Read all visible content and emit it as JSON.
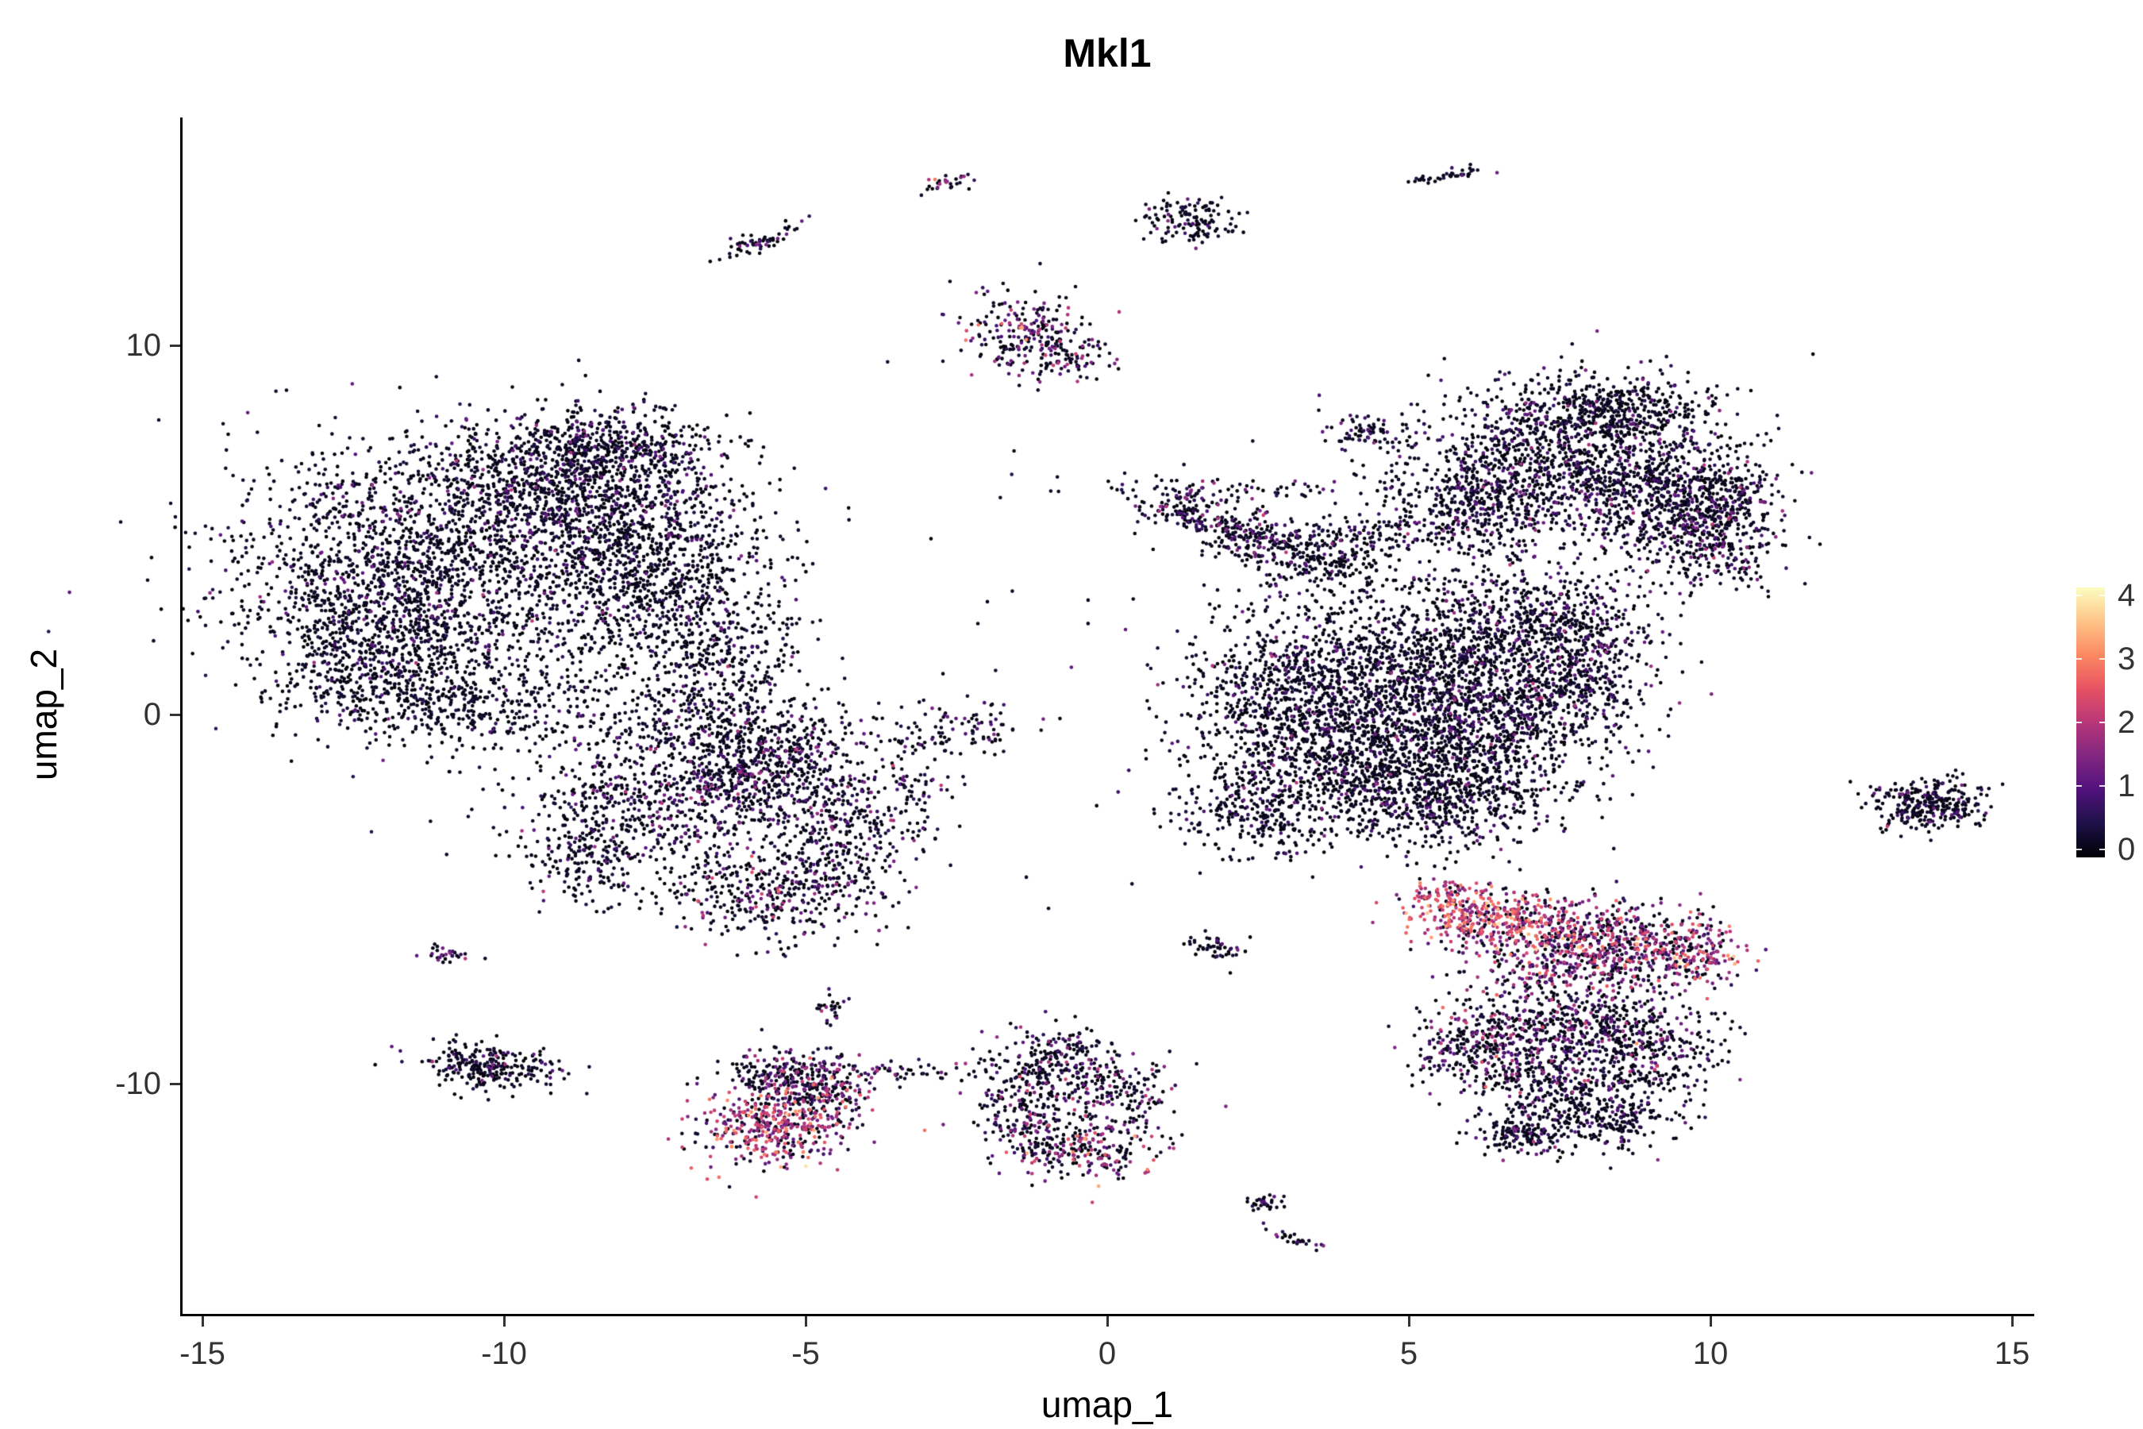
{
  "chart_data": {
    "type": "scatter",
    "title": "Mkl1",
    "xlabel": "umap_1",
    "ylabel": "umap_2",
    "x_ticks": [
      -15,
      -10,
      -5,
      0,
      5,
      10,
      15
    ],
    "y_ticks": [
      -10,
      0,
      10
    ],
    "xlim": [
      -15.4,
      15.4
    ],
    "ylim": [
      -16.2,
      16.2
    ],
    "grid": false,
    "background": "#ffffff",
    "axis_color": "#000000",
    "tick_label_color": "#333333",
    "point_radius_px": 2.3,
    "legend": {
      "type": "colorbar",
      "position": "right",
      "ticks": [
        0,
        1,
        2,
        3,
        4
      ],
      "vmin": 0,
      "vmax": 4.3,
      "colormap": "magma"
    },
    "colormap_stops": [
      [
        0.0,
        "#000004"
      ],
      [
        0.125,
        "#1d1147"
      ],
      [
        0.25,
        "#51127c"
      ],
      [
        0.375,
        "#822681"
      ],
      [
        0.5,
        "#b73779"
      ],
      [
        0.625,
        "#e75263"
      ],
      [
        0.75,
        "#fc8961"
      ],
      [
        0.875,
        "#fec488"
      ],
      [
        1.0,
        "#fcfdbf"
      ]
    ],
    "cluster_fields": [
      "center_x",
      "center_y",
      "sd_x",
      "sd_y",
      "n_points",
      "p_zero",
      "expr_mean",
      "expr_sd",
      "rot_deg"
    ],
    "clusters": [
      [
        -11.8,
        4.2,
        1.5,
        1.6,
        1100,
        0.8,
        0.7,
        0.5,
        0
      ],
      [
        -9.2,
        6.3,
        1.4,
        0.9,
        900,
        0.78,
        0.8,
        0.5,
        0
      ],
      [
        -8.2,
        4.8,
        1.1,
        1.1,
        700,
        0.8,
        0.7,
        0.5,
        0
      ],
      [
        -12.4,
        2.0,
        0.8,
        1.2,
        500,
        0.8,
        0.7,
        0.5,
        0
      ],
      [
        -10.0,
        2.5,
        1.9,
        1.8,
        800,
        0.85,
        0.6,
        0.45,
        0
      ],
      [
        -7.2,
        3.2,
        0.9,
        1.3,
        450,
        0.8,
        0.7,
        0.5,
        0
      ],
      [
        -8.3,
        7.3,
        0.8,
        0.5,
        350,
        0.75,
        0.8,
        0.5,
        0
      ],
      [
        -6.3,
        1.2,
        0.6,
        1.0,
        250,
        0.8,
        0.7,
        0.5,
        0
      ],
      [
        -11.0,
        0.3,
        1.2,
        0.6,
        300,
        0.82,
        0.6,
        0.5,
        0
      ],
      [
        -7.0,
        -2.2,
        1.2,
        1.0,
        700,
        0.72,
        0.9,
        0.6,
        0
      ],
      [
        -5.6,
        -1.4,
        0.8,
        0.7,
        400,
        0.72,
        0.9,
        0.6,
        0
      ],
      [
        -8.6,
        -3.6,
        0.5,
        0.8,
        220,
        0.75,
        0.8,
        0.5,
        0
      ],
      [
        -5.6,
        -4.8,
        0.9,
        0.6,
        380,
        0.7,
        1.0,
        0.7,
        0
      ],
      [
        -4.4,
        -3.2,
        0.6,
        0.8,
        280,
        0.72,
        0.9,
        0.6,
        0
      ],
      [
        -6.6,
        -0.3,
        1.6,
        0.5,
        250,
        0.75,
        0.8,
        0.5,
        0
      ],
      [
        -3.3,
        -1.8,
        0.4,
        0.7,
        90,
        0.7,
        0.9,
        0.6,
        0
      ],
      [
        -2.2,
        -0.4,
        0.45,
        0.35,
        70,
        0.7,
        0.9,
        0.5,
        0
      ],
      [
        -10.3,
        -9.5,
        0.55,
        0.3,
        260,
        0.8,
        0.8,
        0.6,
        -10
      ],
      [
        -10.9,
        -6.5,
        0.18,
        0.12,
        30,
        0.5,
        1.2,
        0.6,
        0
      ],
      [
        -5.3,
        -9.8,
        0.55,
        0.4,
        230,
        0.6,
        1.2,
        0.8,
        0
      ],
      [
        -5.6,
        -11.2,
        0.6,
        0.55,
        380,
        0.25,
        2.1,
        0.7,
        0
      ],
      [
        -4.6,
        -10.4,
        0.45,
        0.5,
        170,
        0.45,
        1.6,
        0.8,
        0
      ],
      [
        -3.4,
        -9.7,
        0.8,
        0.15,
        50,
        0.6,
        1.0,
        0.7,
        0
      ],
      [
        -4.6,
        -8.0,
        0.15,
        0.25,
        25,
        0.6,
        1.0,
        0.6,
        0
      ],
      [
        -0.9,
        -9.4,
        0.55,
        0.45,
        220,
        0.68,
        1.0,
        0.7,
        0
      ],
      [
        -1.3,
        -10.8,
        0.45,
        0.6,
        200,
        0.68,
        1.0,
        0.7,
        0
      ],
      [
        0.2,
        -10.3,
        0.5,
        0.6,
        170,
        0.68,
        1.0,
        0.7,
        0
      ],
      [
        -0.4,
        -11.8,
        0.6,
        0.4,
        220,
        0.45,
        1.7,
        0.8,
        0
      ],
      [
        -2.7,
        14.4,
        0.25,
        0.12,
        28,
        0.5,
        1.3,
        0.8,
        25
      ],
      [
        -5.8,
        12.8,
        0.45,
        0.1,
        60,
        0.7,
        0.9,
        0.6,
        35
      ],
      [
        1.4,
        13.4,
        0.4,
        0.3,
        130,
        0.75,
        0.8,
        0.6,
        0
      ],
      [
        5.7,
        14.6,
        0.35,
        0.08,
        40,
        0.75,
        0.8,
        0.5,
        15
      ],
      [
        -1.4,
        10.4,
        0.5,
        0.55,
        200,
        0.5,
        1.4,
        0.8,
        0
      ],
      [
        -0.8,
        9.7,
        0.45,
        0.3,
        90,
        0.6,
        1.0,
        0.7,
        0
      ],
      [
        7.6,
        7.0,
        1.2,
        1.0,
        950,
        0.78,
        0.8,
        0.5,
        0
      ],
      [
        9.2,
        6.0,
        0.8,
        0.9,
        550,
        0.78,
        0.8,
        0.5,
        0
      ],
      [
        6.1,
        5.8,
        0.8,
        0.7,
        450,
        0.78,
        0.8,
        0.5,
        0
      ],
      [
        8.4,
        8.3,
        0.9,
        0.4,
        350,
        0.75,
        0.8,
        0.5,
        0
      ],
      [
        10.0,
        4.6,
        0.6,
        0.7,
        300,
        0.72,
        0.9,
        0.6,
        0
      ],
      [
        10.3,
        5.9,
        0.4,
        0.6,
        180,
        0.72,
        0.9,
        0.6,
        0
      ],
      [
        5.0,
        1.0,
        1.5,
        1.4,
        1300,
        0.8,
        0.7,
        0.5,
        0
      ],
      [
        6.6,
        0.3,
        1.1,
        1.0,
        800,
        0.78,
        0.8,
        0.5,
        0
      ],
      [
        4.0,
        -1.2,
        1.2,
        1.0,
        800,
        0.8,
        0.7,
        0.5,
        0
      ],
      [
        5.6,
        -2.2,
        1.0,
        0.8,
        600,
        0.8,
        0.7,
        0.5,
        0
      ],
      [
        3.1,
        0.6,
        0.9,
        1.0,
        500,
        0.82,
        0.7,
        0.5,
        0
      ],
      [
        6.9,
        2.6,
        0.9,
        0.7,
        400,
        0.75,
        0.8,
        0.5,
        0
      ],
      [
        7.9,
        1.5,
        0.6,
        0.9,
        300,
        0.72,
        0.9,
        0.6,
        0
      ],
      [
        2.5,
        -2.6,
        0.7,
        0.6,
        250,
        0.8,
        0.7,
        0.5,
        0
      ],
      [
        1.3,
        5.6,
        0.45,
        0.3,
        140,
        0.7,
        0.9,
        0.6,
        -30
      ],
      [
        2.4,
        4.8,
        0.5,
        0.35,
        180,
        0.7,
        0.9,
        0.6,
        -25
      ],
      [
        3.5,
        4.2,
        0.6,
        0.4,
        220,
        0.72,
        0.9,
        0.6,
        -15
      ],
      [
        4.6,
        4.9,
        1.0,
        0.25,
        120,
        0.7,
        0.9,
        0.5,
        0
      ],
      [
        4.3,
        7.6,
        0.35,
        0.25,
        70,
        0.7,
        0.9,
        0.5,
        0
      ],
      [
        2.0,
        6.1,
        1.3,
        0.15,
        60,
        0.7,
        0.8,
        0.5,
        0
      ],
      [
        13.6,
        -2.4,
        0.45,
        0.35,
        300,
        0.78,
        0.8,
        0.5,
        0
      ],
      [
        6.1,
        -5.4,
        0.55,
        0.35,
        240,
        0.15,
        2.4,
        0.6,
        0
      ],
      [
        7.1,
        -5.9,
        0.8,
        0.5,
        340,
        0.3,
        2.0,
        0.7,
        0
      ],
      [
        8.5,
        -6.1,
        0.8,
        0.55,
        340,
        0.45,
        1.5,
        0.8,
        0
      ],
      [
        9.6,
        -6.4,
        0.5,
        0.4,
        200,
        0.3,
        1.9,
        0.7,
        0
      ],
      [
        7.8,
        -7.1,
        0.9,
        0.4,
        220,
        0.5,
        1.4,
        0.8,
        0
      ],
      [
        5.6,
        -4.9,
        0.3,
        0.2,
        60,
        0.3,
        2.2,
        0.6,
        0
      ],
      [
        7.8,
        -8.4,
        0.9,
        0.5,
        380,
        0.6,
        1.1,
        0.7,
        0
      ],
      [
        8.9,
        -9.2,
        0.6,
        0.6,
        280,
        0.65,
        1.0,
        0.7,
        0
      ],
      [
        6.2,
        -8.9,
        0.6,
        0.5,
        260,
        0.55,
        1.2,
        0.7,
        0
      ],
      [
        7.2,
        -9.9,
        0.7,
        0.6,
        300,
        0.7,
        0.9,
        0.6,
        0
      ],
      [
        8.3,
        -10.9,
        0.6,
        0.5,
        260,
        0.75,
        0.8,
        0.5,
        0
      ],
      [
        6.9,
        -11.4,
        0.4,
        0.3,
        140,
        0.75,
        0.8,
        0.5,
        0
      ],
      [
        1.8,
        -6.3,
        0.25,
        0.15,
        50,
        0.7,
        0.8,
        0.5,
        -20
      ],
      [
        2.6,
        -13.2,
        0.15,
        0.12,
        30,
        0.7,
        0.8,
        0.5,
        0
      ],
      [
        3.1,
        -14.2,
        0.3,
        0.08,
        26,
        0.7,
        0.8,
        0.5,
        -30
      ],
      [
        0.0,
        2.0,
        3.5,
        3.5,
        40,
        0.8,
        0.6,
        0.5,
        0
      ]
    ]
  }
}
